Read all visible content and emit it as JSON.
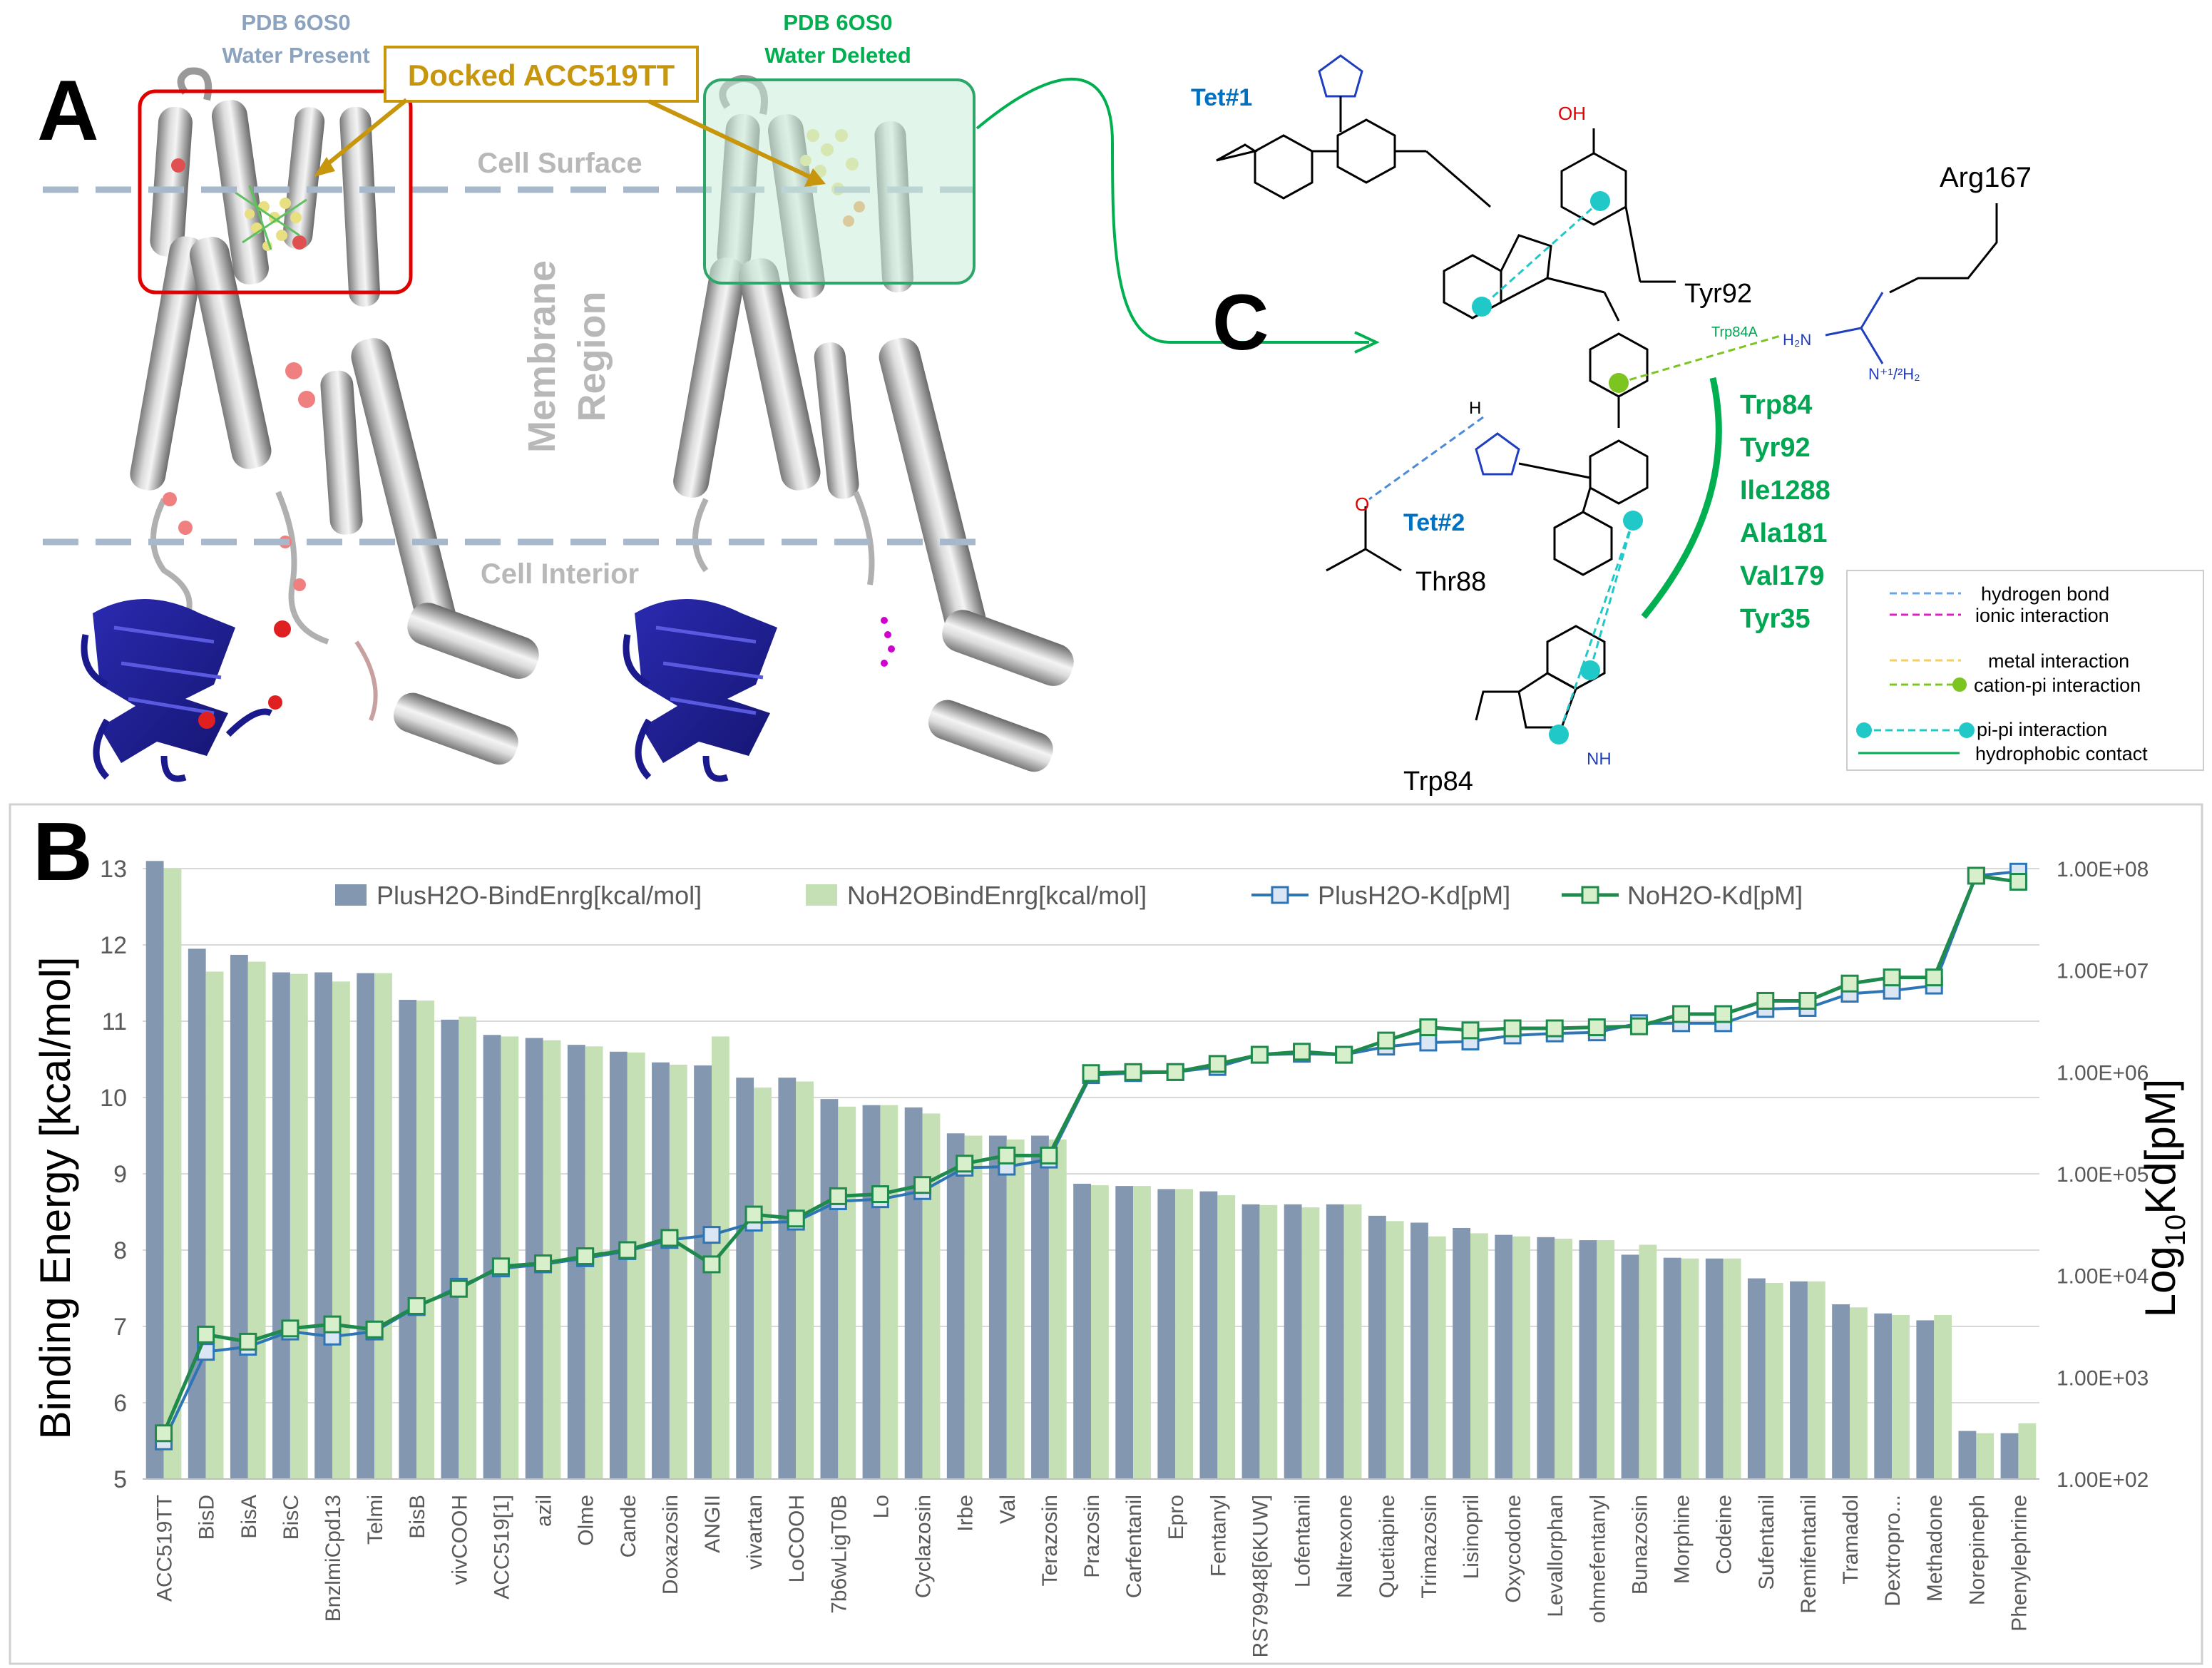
{
  "panel_labels": {
    "a": "A",
    "b": "B",
    "c": "C"
  },
  "panel_a": {
    "left_title_1": "PDB 6OS0",
    "left_title_2": "Water Present",
    "right_title_1": "PDB 6OS0",
    "right_title_2": "Water Deleted",
    "docked_label": "Docked ACC519TT",
    "cell_surface": "Cell Surface",
    "membrane_1": "Membrane",
    "membrane_2": "Region",
    "cell_interior": "Cell Interior"
  },
  "panel_c": {
    "tet1": "Tet#1",
    "tet2": "Tet#2",
    "oh": "OH",
    "arg167": "Arg167",
    "tyr92": "Tyr92",
    "thr88": "Thr88",
    "trp84": "Trp84",
    "trp84a": "Trp84A",
    "nh": "NH",
    "h2n": "H₂N",
    "nh2": "N⁺¹/²H₂",
    "h_label": "H",
    "n_label": "N",
    "o_label": "O",
    "hydrophobic_residues": [
      "Trp84",
      "Tyr92",
      "Ile1288",
      "Ala181",
      "Val179",
      "Tyr35"
    ],
    "legend": [
      "hydrogen bond",
      "ionic interaction",
      "metal interaction",
      "cation-pi interaction",
      "pi-pi interaction",
      "hydrophobic contact"
    ]
  },
  "colors": {
    "plus_bar": "#8497b0",
    "no_bar": "#c5e0b4",
    "plus_line": "#2e75b6",
    "no_line": "#1e8a4c",
    "green_text": "#00a651",
    "blue_text": "#0070c0",
    "gold": "#c8960c"
  },
  "chart_data": {
    "type": "bar",
    "title": "",
    "ylabel": "Binding Energy [kcal/mol]",
    "y2label": "Log10Kd[pM]",
    "ylim": [
      5,
      13
    ],
    "y2lim_log10": [
      2,
      8
    ],
    "y_ticks": [
      "5",
      "6",
      "7",
      "8",
      "9",
      "10",
      "11",
      "12",
      "13"
    ],
    "y2_ticks": [
      "1.00E+02",
      "1.00E+03",
      "1.00E+04",
      "1.00E+05",
      "1.00E+06",
      "1.00E+07",
      "1.00E+08"
    ],
    "legend": [
      "PlusH2O-BindEnrg[kcal/mol]",
      "NoH2OBindEnrg[kcal/mol]",
      "PlusH2O-Kd[pM]",
      "NoH2O-Kd[pM]"
    ],
    "categories": [
      "ACC519TT",
      "BisD",
      "BisA",
      "BisC",
      "BnzlmiCpd13",
      "Telmi",
      "BisB",
      "vivCOOH",
      "ACC519[1]",
      "azil",
      "Olme",
      "Cande",
      "Doxazosin",
      "ANGII",
      "vivartan",
      "LoCOOH",
      "7b6wLigT0B",
      "Lo",
      "Cyclazosin",
      "Irbe",
      "Val",
      "Terazosin",
      "Prazosin",
      "Carfentanil",
      "Epro",
      "Fentanyl",
      "RS79948[6KUW]",
      "Lofentanil",
      "Naltrexone",
      "Quetiapine",
      "Trimazosin",
      "Lisinopril",
      "Oxycodone",
      "Levallorphan",
      "ohmefentanyl",
      "Bunazosin",
      "Morphine",
      "Codeine",
      "Sufentanil",
      "Remifentanil",
      "Tramadol",
      "Dextropro...",
      "Methadone",
      "Norepineph",
      "Phenylephrine"
    ],
    "series": [
      {
        "name": "PlusH2O-BindEnrg[kcal/mol]",
        "kind": "bar",
        "axis": "left",
        "values": [
          13.1,
          11.95,
          11.87,
          11.64,
          11.64,
          11.63,
          11.28,
          11.02,
          10.82,
          10.78,
          10.69,
          10.6,
          10.46,
          10.42,
          10.26,
          10.26,
          9.98,
          9.9,
          9.87,
          9.53,
          9.5,
          9.5,
          8.87,
          8.84,
          8.8,
          8.77,
          8.6,
          8.6,
          8.6,
          8.45,
          8.36,
          8.29,
          8.2,
          8.17,
          8.13,
          7.94,
          7.9,
          7.89,
          7.63,
          7.59,
          7.29,
          7.17,
          7.08,
          5.63,
          5.6
        ]
      },
      {
        "name": "NoH2OBindEnrg[kcal/mol]",
        "kind": "bar",
        "axis": "left",
        "values": [
          13.0,
          11.65,
          11.78,
          11.62,
          11.52,
          11.63,
          11.27,
          11.06,
          10.8,
          10.75,
          10.67,
          10.59,
          10.43,
          10.8,
          10.13,
          10.21,
          9.88,
          9.9,
          9.79,
          9.5,
          9.45,
          9.45,
          8.85,
          8.84,
          8.8,
          8.72,
          8.59,
          8.56,
          8.6,
          8.38,
          8.18,
          8.22,
          8.18,
          8.15,
          8.13,
          8.07,
          7.89,
          7.89,
          7.57,
          7.59,
          7.25,
          7.15,
          7.15,
          5.6,
          5.73
        ]
      },
      {
        "name": "PlusH2O-Kd[pM]",
        "kind": "line",
        "axis": "right",
        "log10_values": [
          2.37,
          3.25,
          3.3,
          3.45,
          3.4,
          3.45,
          3.69,
          3.89,
          4.07,
          4.11,
          4.17,
          4.24,
          4.35,
          4.4,
          4.52,
          4.53,
          4.73,
          4.75,
          4.83,
          5.06,
          5.07,
          5.14,
          5.97,
          5.99,
          6.0,
          6.05,
          6.17,
          6.18,
          6.17,
          6.25,
          6.29,
          6.3,
          6.36,
          6.38,
          6.39,
          6.48,
          6.48,
          6.48,
          6.62,
          6.63,
          6.77,
          6.8,
          6.85,
          7.93,
          7.97
        ]
      },
      {
        "name": "NoH2O-Kd[pM]",
        "kind": "line",
        "axis": "right",
        "log10_values": [
          2.45,
          3.42,
          3.35,
          3.48,
          3.52,
          3.47,
          3.7,
          3.87,
          4.09,
          4.12,
          4.19,
          4.25,
          4.37,
          4.11,
          4.6,
          4.56,
          4.78,
          4.8,
          4.89,
          5.1,
          5.18,
          5.18,
          5.99,
          6.0,
          6.0,
          6.08,
          6.17,
          6.2,
          6.17,
          6.31,
          6.44,
          6.41,
          6.43,
          6.43,
          6.44,
          6.45,
          6.57,
          6.57,
          6.7,
          6.7,
          6.87,
          6.93,
          6.93,
          7.93,
          7.87
        ]
      }
    ]
  }
}
